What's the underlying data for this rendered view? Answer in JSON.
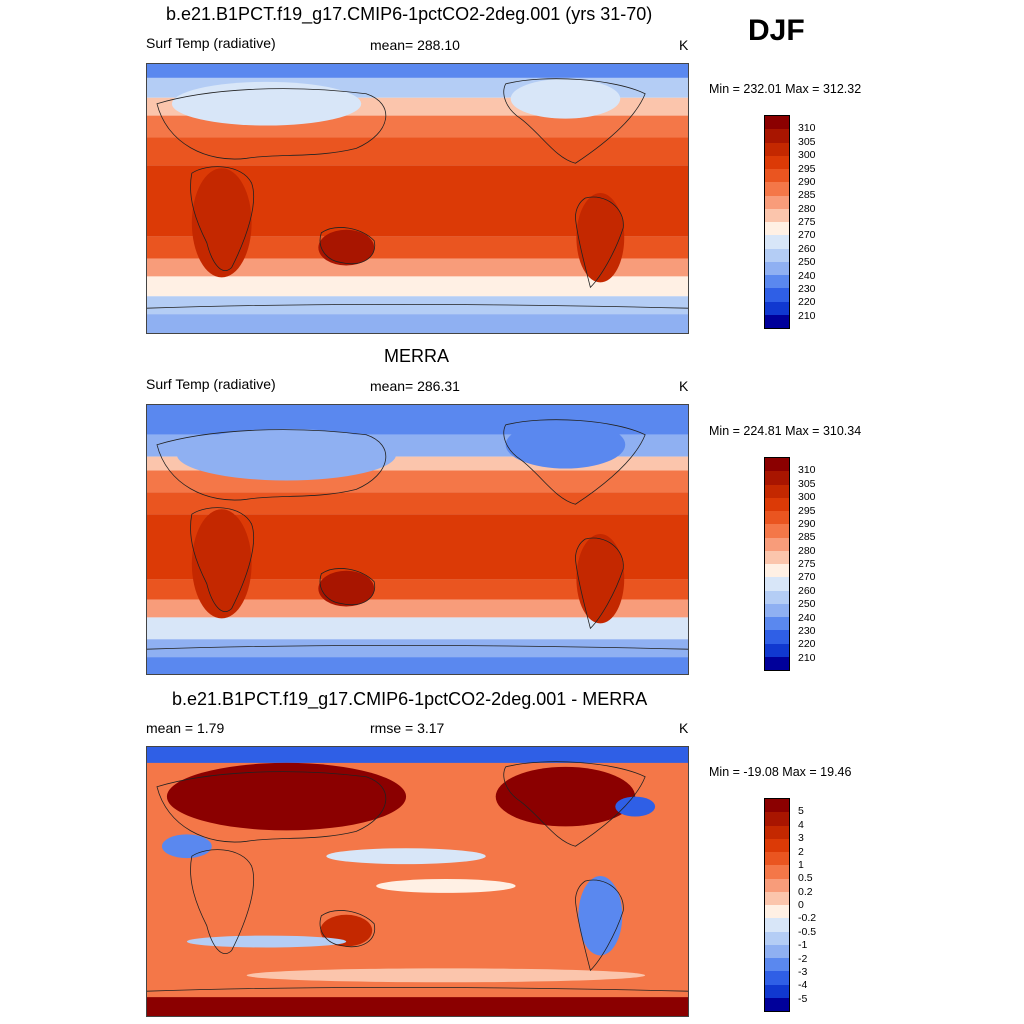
{
  "season": "DJF",
  "panels": [
    {
      "title": "b.e21.B1PCT.f19_g17.CMIP6-1pctCO2-2deg.001 (yrs 31-70)",
      "left_label": "Surf Temp (radiative)",
      "center_label": "mean= 288.10",
      "units": "K",
      "minmax": "Min = 232.01 Max = 312.32",
      "colorbar": {
        "labels": [
          "310",
          "305",
          "300",
          "295",
          "290",
          "285",
          "280",
          "275",
          "270",
          "260",
          "250",
          "240",
          "230",
          "220",
          "210"
        ],
        "colors": [
          "#8b0000",
          "#a81500",
          "#c42800",
          "#dc3a06",
          "#ea5520",
          "#f47748",
          "#f89c7a",
          "#fbc5ac",
          "#fff0e4",
          "#d8e6f8",
          "#b4cdf5",
          "#8fb0f2",
          "#5a88ef",
          "#2f5fe6",
          "#1038d0",
          "#00009a"
        ]
      },
      "map_kind": "model"
    },
    {
      "title": "MERRA",
      "left_label": "Surf Temp (radiative)",
      "center_label": "mean= 286.31",
      "units": "K",
      "minmax": "Min = 224.81 Max = 310.34",
      "colorbar": {
        "labels": [
          "310",
          "305",
          "300",
          "295",
          "290",
          "285",
          "280",
          "275",
          "270",
          "260",
          "250",
          "240",
          "230",
          "220",
          "210"
        ],
        "colors": [
          "#8b0000",
          "#a81500",
          "#c42800",
          "#dc3a06",
          "#ea5520",
          "#f47748",
          "#f89c7a",
          "#fbc5ac",
          "#fff0e4",
          "#d8e6f8",
          "#b4cdf5",
          "#8fb0f2",
          "#5a88ef",
          "#2f5fe6",
          "#1038d0",
          "#00009a"
        ]
      },
      "map_kind": "obs"
    },
    {
      "title": "b.e21.B1PCT.f19_g17.CMIP6-1pctCO2-2deg.001 - MERRA",
      "left_label": "mean =   1.79",
      "center_label": "rmse =   3.17",
      "units": "K",
      "minmax": "Min = -19.08 Max =  19.46",
      "colorbar": {
        "labels": [
          "5",
          "4",
          "3",
          "2",
          "1",
          "0.5",
          "0.2",
          "0",
          "-0.2",
          "-0.5",
          "-1",
          "-2",
          "-3",
          "-4",
          "-5"
        ],
        "colors": [
          "#8b0000",
          "#a81500",
          "#c42800",
          "#dc3a06",
          "#ea5520",
          "#f47748",
          "#f89c7a",
          "#fbc5ac",
          "#fff0e4",
          "#d8e6f8",
          "#b4cdf5",
          "#8fb0f2",
          "#5a88ef",
          "#2f5fe6",
          "#1038d0",
          "#00009a"
        ]
      },
      "map_kind": "diff"
    }
  ]
}
